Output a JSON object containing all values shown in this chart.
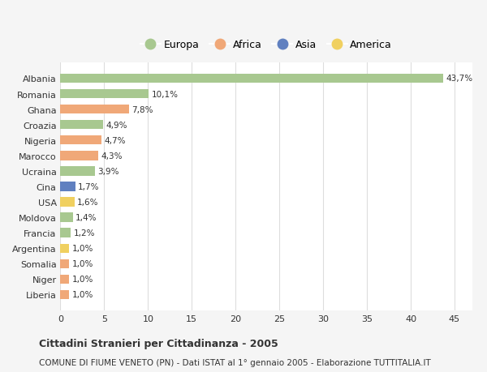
{
  "categories": [
    "Albania",
    "Romania",
    "Ghana",
    "Croazia",
    "Nigeria",
    "Marocco",
    "Ucraina",
    "Cina",
    "USA",
    "Moldova",
    "Francia",
    "Argentina",
    "Somalia",
    "Niger",
    "Liberia"
  ],
  "values": [
    43.7,
    10.1,
    7.8,
    4.9,
    4.7,
    4.3,
    3.9,
    1.7,
    1.6,
    1.4,
    1.2,
    1.0,
    1.0,
    1.0,
    1.0
  ],
  "labels": [
    "43,7%",
    "10,1%",
    "7,8%",
    "4,9%",
    "4,7%",
    "4,3%",
    "3,9%",
    "1,7%",
    "1,6%",
    "1,4%",
    "1,2%",
    "1,0%",
    "1,0%",
    "1,0%",
    "1,0%"
  ],
  "continents": [
    "Europa",
    "Europa",
    "Africa",
    "Europa",
    "Africa",
    "Africa",
    "Europa",
    "Asia",
    "America",
    "Europa",
    "Europa",
    "America",
    "Africa",
    "Africa",
    "Africa"
  ],
  "continent_colors": {
    "Europa": "#a8c890",
    "Africa": "#f0a878",
    "Asia": "#6080c0",
    "America": "#f0d060"
  },
  "legend_order": [
    "Europa",
    "Africa",
    "Asia",
    "America"
  ],
  "title": "Cittadini Stranieri per Cittadinanza - 2005",
  "subtitle": "COMUNE DI FIUME VENETO (PN) - Dati ISTAT al 1° gennaio 2005 - Elaborazione TUTTITALIA.IT",
  "xlim": [
    0,
    47
  ],
  "xticks": [
    0,
    5,
    10,
    15,
    20,
    25,
    30,
    35,
    40,
    45
  ],
  "background_color": "#f5f5f5",
  "plot_background": "#ffffff",
  "grid_color": "#dddddd",
  "text_color": "#333333",
  "bar_height": 0.6
}
